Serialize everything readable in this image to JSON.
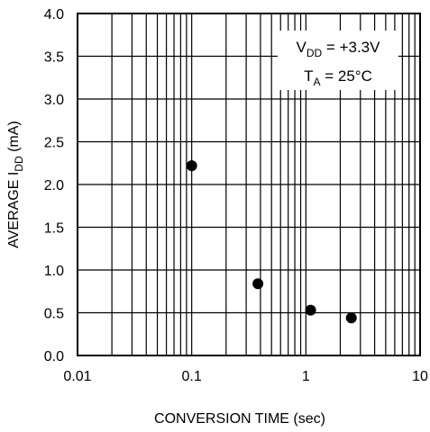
{
  "chart_data": {
    "type": "scatter",
    "title": "",
    "xlabel": "CONVERSION TIME (sec)",
    "ylabel": {
      "prefix": "AVERAGE I",
      "subscript": "DD",
      "suffix": " (mA)"
    },
    "x_scale": "log",
    "xlim": [
      0.01,
      10
    ],
    "ylim": [
      0.0,
      4.0
    ],
    "x_ticks": [
      {
        "value": 0.01,
        "label": "0.01"
      },
      {
        "value": 0.1,
        "label": "0.1"
      },
      {
        "value": 1,
        "label": "1"
      },
      {
        "value": 10,
        "label": "10"
      }
    ],
    "y_ticks": [
      {
        "value": 0.0,
        "label": "0.0"
      },
      {
        "value": 0.5,
        "label": "0.5"
      },
      {
        "value": 1.0,
        "label": "1.0"
      },
      {
        "value": 1.5,
        "label": "1.5"
      },
      {
        "value": 2.0,
        "label": "2.0"
      },
      {
        "value": 2.5,
        "label": "2.5"
      },
      {
        "value": 3.0,
        "label": "3.0"
      },
      {
        "value": 3.5,
        "label": "3.5"
      },
      {
        "value": 4.0,
        "label": "4.0"
      }
    ],
    "grid": true,
    "series": [
      {
        "points": [
          {
            "x": 0.1,
            "y": 2.22
          },
          {
            "x": 0.38,
            "y": 0.84
          },
          {
            "x": 1.1,
            "y": 0.53
          },
          {
            "x": 2.5,
            "y": 0.44
          }
        ],
        "marker_color": "#000000"
      }
    ],
    "annotations": [
      {
        "prefix": "V",
        "subscript": "DD",
        "suffix": " = +3.3V"
      },
      {
        "prefix": "T",
        "subscript": "A",
        "suffix": " = 25°C"
      }
    ]
  }
}
